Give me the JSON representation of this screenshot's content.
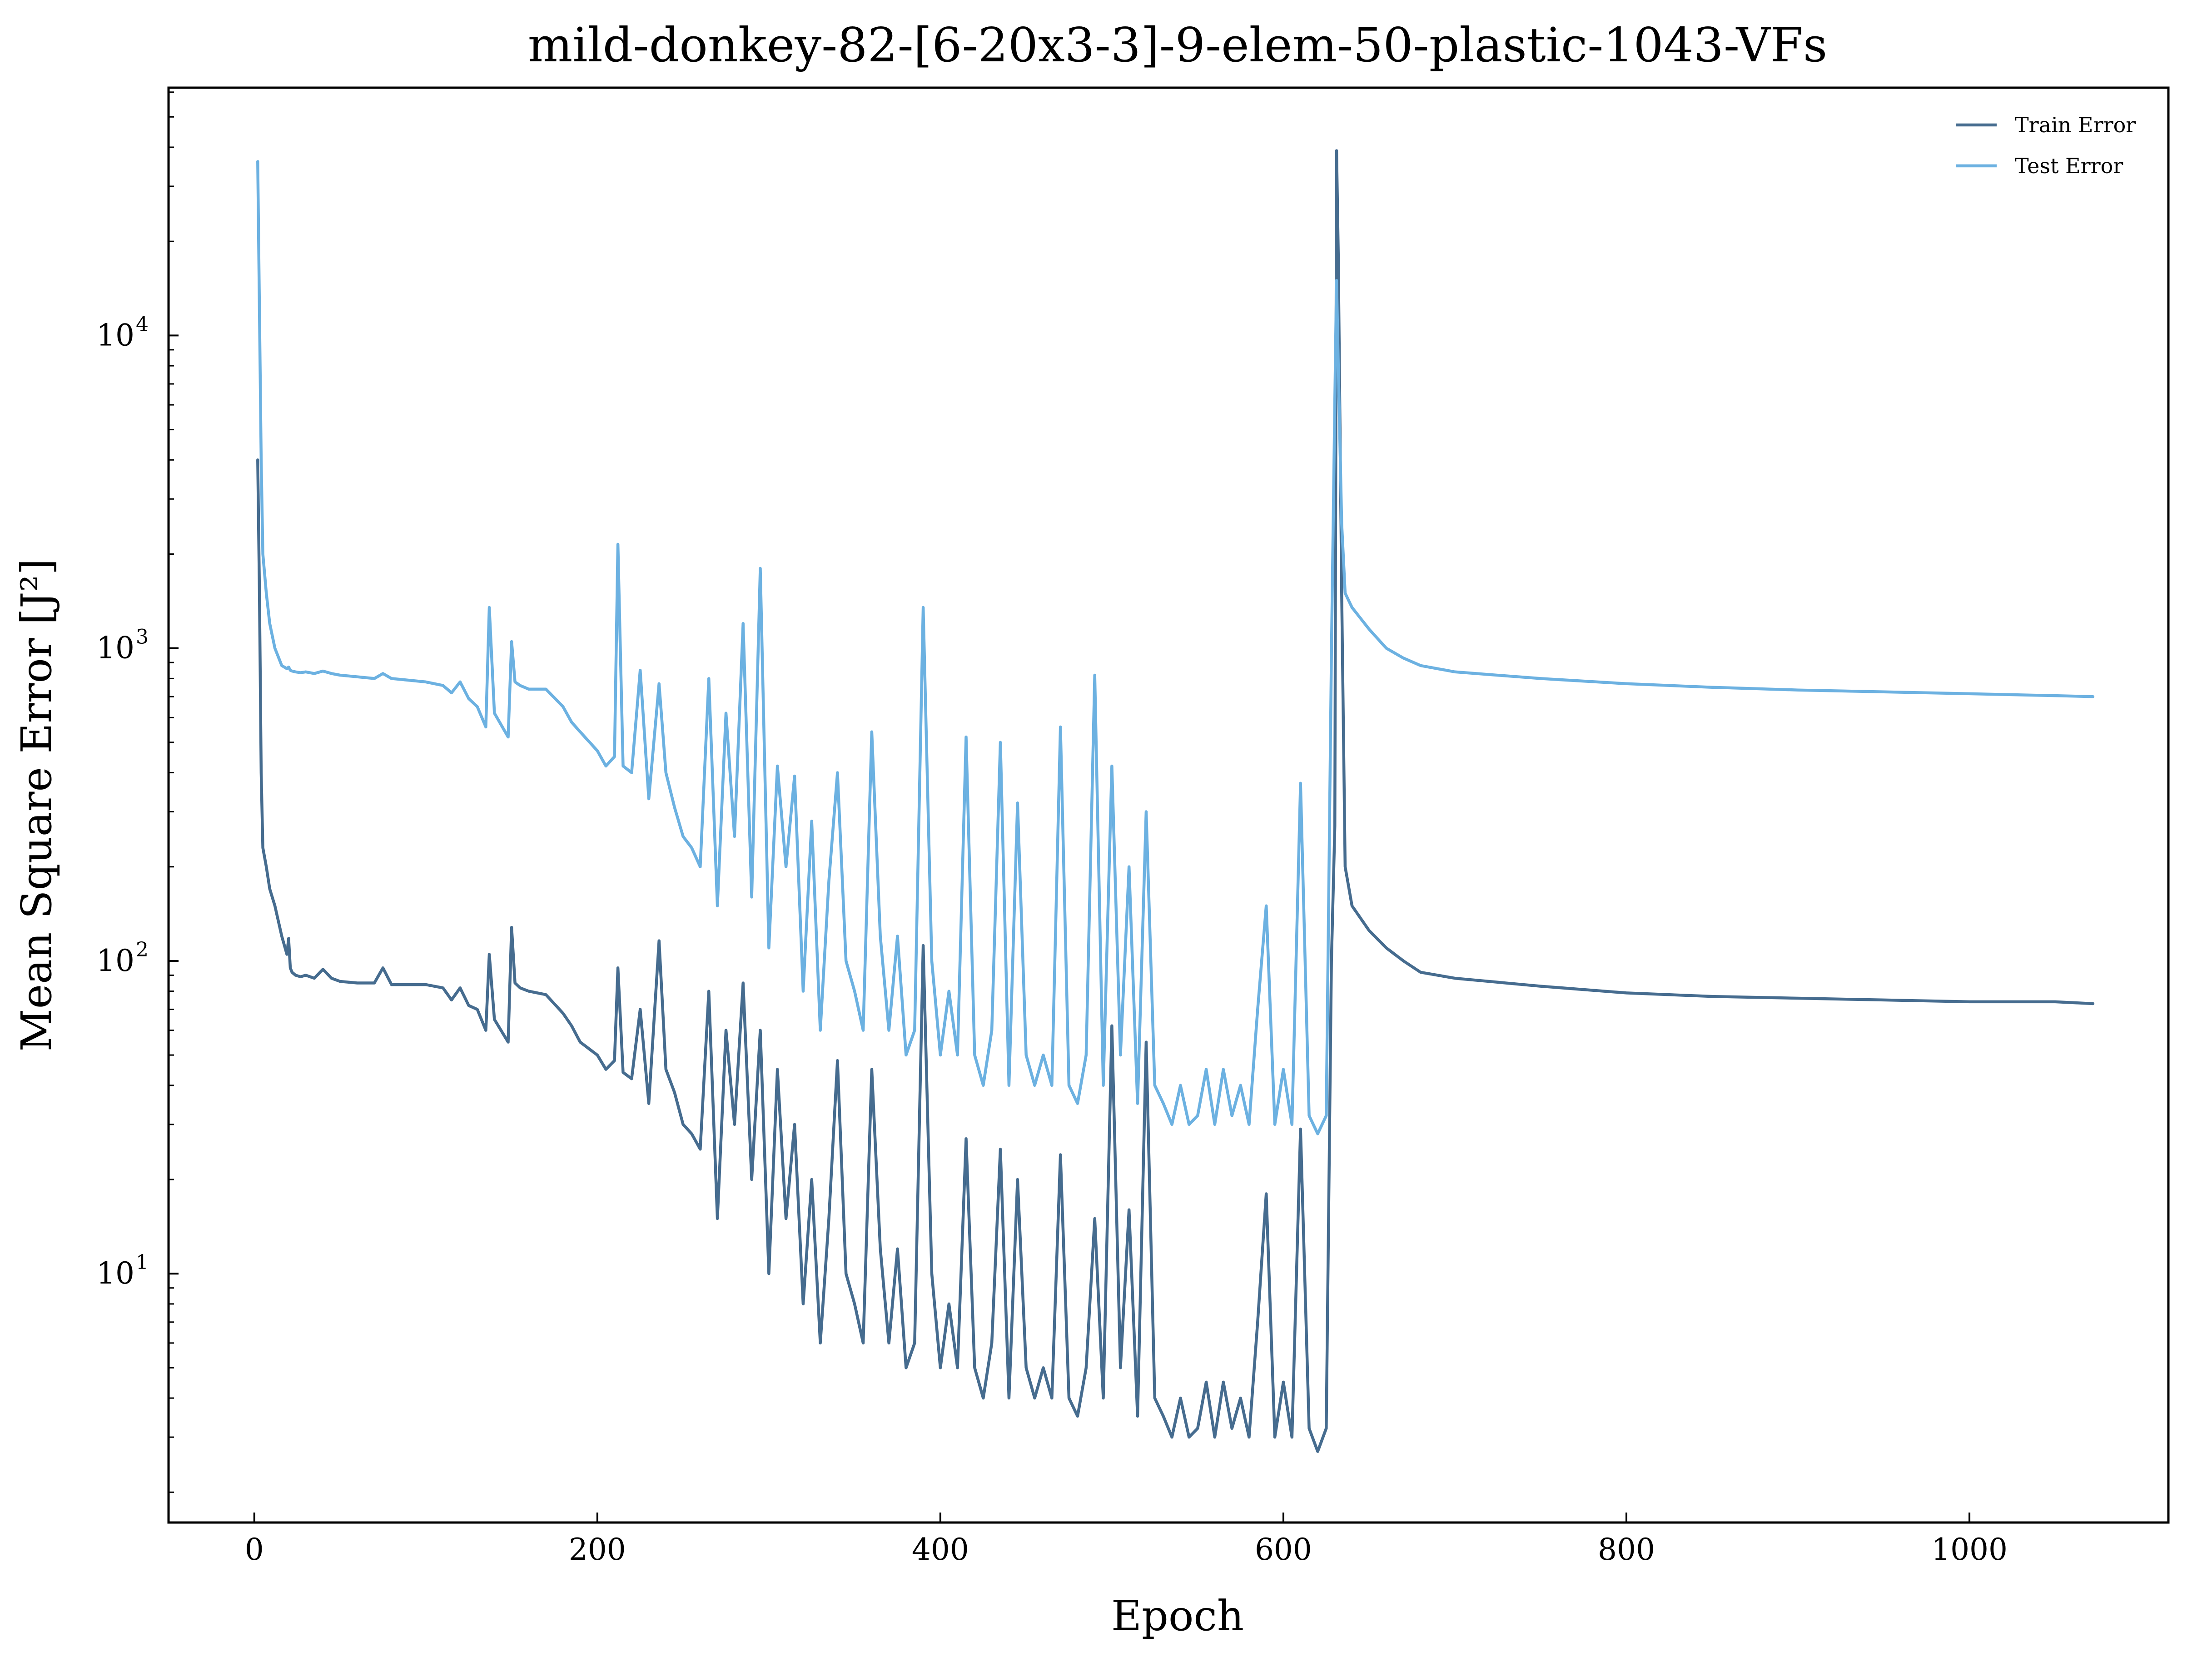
{
  "colors": {
    "train": "#466c8f",
    "test": "#6cb1e1",
    "axis": "#000000",
    "background": "#ffffff"
  },
  "chart_data": {
    "type": "line",
    "title": "mild-donkey-82-[6-20x3-3]-9-elem-50-plastic-1043-VFs",
    "xlabel": "Epoch",
    "ylabel": "Mean Square Error [J²]",
    "yscale": "log",
    "xlim": [
      -50,
      1116
    ],
    "ylim": [
      1.6,
      62000
    ],
    "grid": false,
    "legend_position": "top-right",
    "xticks": [
      {
        "value": 0,
        "label": "0"
      },
      {
        "value": 200,
        "label": "200"
      },
      {
        "value": 400,
        "label": "400"
      },
      {
        "value": 600,
        "label": "600"
      },
      {
        "value": 800,
        "label": "800"
      },
      {
        "value": 1000,
        "label": "1000"
      }
    ],
    "yticks": [
      {
        "value": 10,
        "base": "10",
        "exp": "1"
      },
      {
        "value": 100,
        "base": "10",
        "exp": "2"
      },
      {
        "value": 1000,
        "base": "10",
        "exp": "3"
      },
      {
        "value": 10000,
        "base": "10",
        "exp": "4"
      }
    ],
    "series": [
      {
        "name": "Train Error",
        "color": "#466c8f",
        "x": [
          2,
          3,
          4,
          5,
          7,
          9,
          12,
          16,
          19,
          20,
          21,
          22,
          24,
          27,
          30,
          35,
          40,
          45,
          50,
          60,
          70,
          75,
          80,
          90,
          100,
          110,
          115,
          120,
          125,
          130,
          135,
          137,
          140,
          148,
          150,
          152,
          155,
          160,
          170,
          180,
          185,
          190,
          200,
          205,
          210,
          212,
          215,
          220,
          225,
          230,
          236,
          240,
          245,
          250,
          255,
          260,
          265,
          270,
          275,
          280,
          285,
          290,
          295,
          300,
          305,
          310,
          315,
          320,
          325,
          330,
          335,
          340,
          345,
          350,
          355,
          360,
          365,
          370,
          375,
          380,
          385,
          390,
          395,
          400,
          405,
          410,
          415,
          420,
          425,
          430,
          435,
          440,
          445,
          450,
          455,
          460,
          465,
          470,
          475,
          480,
          485,
          490,
          495,
          500,
          505,
          510,
          515,
          520,
          525,
          530,
          535,
          540,
          545,
          550,
          555,
          560,
          565,
          570,
          575,
          580,
          585,
          590,
          595,
          600,
          605,
          610,
          615,
          620,
          625,
          628,
          630,
          631,
          632,
          634,
          636,
          640,
          650,
          660,
          670,
          680,
          700,
          750,
          800,
          850,
          900,
          950,
          1000,
          1050,
          1072
        ],
        "values": [
          4000,
          1500,
          400,
          230,
          200,
          170,
          150,
          120,
          105,
          118,
          95,
          92,
          90,
          89,
          90,
          88,
          94,
          88,
          86,
          85,
          85,
          95,
          84,
          84,
          84,
          82,
          75,
          82,
          72,
          70,
          60,
          105,
          65,
          55,
          128,
          85,
          82,
          80,
          78,
          68,
          62,
          55,
          50,
          45,
          48,
          95,
          44,
          42,
          70,
          35,
          116,
          45,
          38,
          30,
          28,
          25,
          80,
          15,
          60,
          30,
          85,
          20,
          60,
          10,
          45,
          15,
          30,
          8,
          20,
          6,
          15,
          48,
          10,
          8,
          6,
          45,
          12,
          6,
          12,
          5,
          6,
          112,
          10,
          5,
          8,
          5,
          27,
          5,
          4,
          6,
          25,
          4,
          20,
          5,
          4,
          5,
          4,
          24,
          4,
          3.5,
          5,
          15,
          4,
          62,
          5,
          16,
          3.5,
          55,
          4,
          3.5,
          3,
          4,
          3,
          3.2,
          4.5,
          3,
          4.5,
          3.2,
          4,
          3,
          7,
          18,
          3,
          4.5,
          3,
          29,
          3.2,
          2.7,
          3.2,
          100,
          270,
          39000,
          18000,
          1500,
          200,
          150,
          125,
          110,
          100,
          92,
          88,
          83,
          79,
          77,
          76,
          75,
          74,
          74,
          73
        ]
      },
      {
        "name": "Test Error",
        "color": "#6cb1e1",
        "x": [
          2,
          3,
          4,
          5,
          7,
          9,
          12,
          16,
          19,
          20,
          21,
          22,
          24,
          27,
          30,
          35,
          40,
          45,
          50,
          60,
          70,
          75,
          80,
          90,
          100,
          110,
          115,
          120,
          125,
          130,
          135,
          137,
          140,
          148,
          150,
          152,
          155,
          160,
          170,
          180,
          185,
          190,
          200,
          205,
          210,
          212,
          215,
          220,
          225,
          230,
          236,
          240,
          245,
          250,
          255,
          260,
          265,
          270,
          275,
          280,
          285,
          290,
          295,
          300,
          305,
          310,
          315,
          320,
          325,
          330,
          335,
          340,
          345,
          350,
          355,
          360,
          365,
          370,
          375,
          380,
          385,
          390,
          395,
          400,
          405,
          410,
          415,
          420,
          425,
          430,
          435,
          440,
          445,
          450,
          455,
          460,
          465,
          470,
          475,
          480,
          485,
          490,
          495,
          500,
          505,
          510,
          515,
          520,
          525,
          530,
          535,
          540,
          545,
          550,
          555,
          560,
          565,
          570,
          575,
          580,
          585,
          590,
          595,
          600,
          605,
          610,
          615,
          620,
          625,
          628,
          630,
          631,
          632,
          634,
          636,
          640,
          650,
          660,
          670,
          680,
          700,
          750,
          800,
          850,
          900,
          950,
          1000,
          1050,
          1072
        ],
        "values": [
          36000,
          12000,
          4000,
          2000,
          1500,
          1200,
          1000,
          880,
          860,
          870,
          850,
          845,
          840,
          835,
          840,
          830,
          845,
          830,
          820,
          810,
          800,
          830,
          800,
          790,
          780,
          760,
          720,
          780,
          690,
          650,
          560,
          1350,
          620,
          520,
          1050,
          780,
          760,
          740,
          740,
          650,
          580,
          540,
          470,
          420,
          450,
          2150,
          420,
          400,
          850,
          330,
          770,
          400,
          310,
          250,
          230,
          200,
          800,
          150,
          620,
          250,
          1200,
          160,
          1800,
          110,
          420,
          200,
          390,
          80,
          280,
          60,
          180,
          400,
          100,
          80,
          60,
          540,
          120,
          60,
          120,
          50,
          60,
          1350,
          100,
          50,
          80,
          50,
          520,
          50,
          40,
          60,
          500,
          40,
          320,
          50,
          40,
          50,
          40,
          560,
          40,
          35,
          50,
          820,
          40,
          420,
          50,
          200,
          35,
          300,
          40,
          35,
          30,
          40,
          30,
          32,
          45,
          30,
          45,
          32,
          40,
          30,
          70,
          150,
          30,
          45,
          30,
          370,
          32,
          28,
          32,
          960,
          6200,
          15000,
          8000,
          2500,
          1500,
          1350,
          1150,
          1000,
          930,
          880,
          840,
          800,
          770,
          750,
          735,
          725,
          715,
          705,
          700
        ]
      }
    ]
  }
}
